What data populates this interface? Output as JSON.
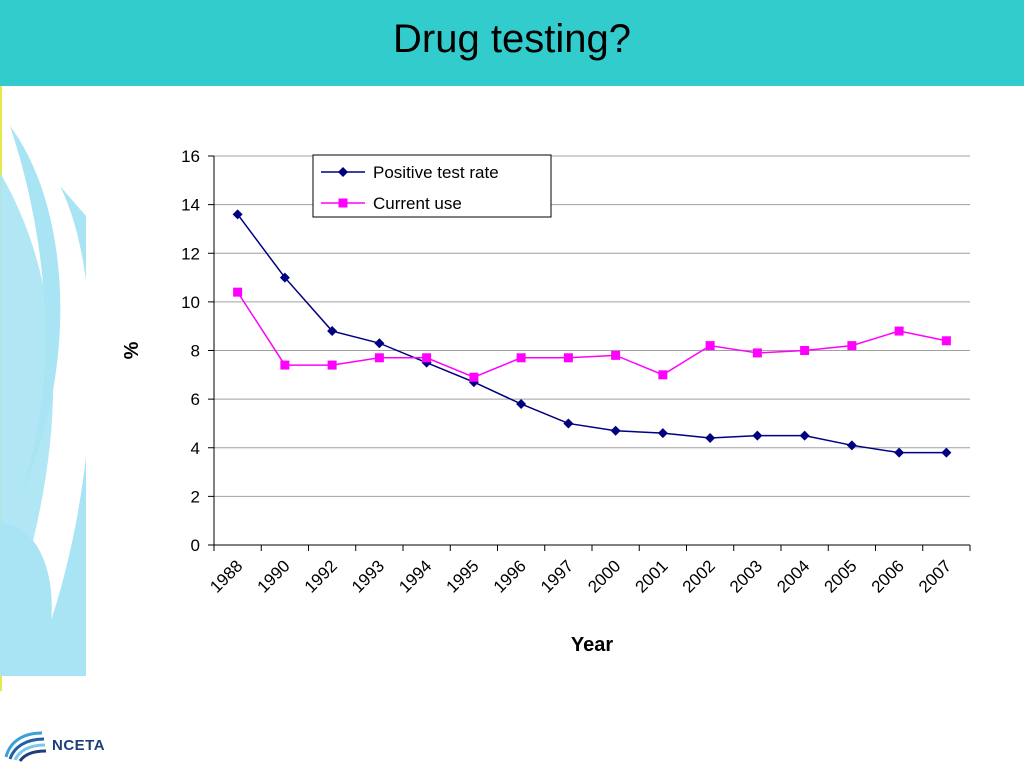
{
  "slide": {
    "title": "Drug testing?",
    "logo_text": "NCETA",
    "accent_color": "#33cccc",
    "decor_color": "#a8e4f4"
  },
  "chart_data": {
    "type": "line",
    "title": "",
    "xlabel": "Year",
    "ylabel": "%",
    "categories": [
      "1988",
      "1990",
      "1992",
      "1993",
      "1994",
      "1995",
      "1996",
      "1997",
      "2000",
      "2001",
      "2002",
      "2003",
      "2004",
      "2005",
      "2006",
      "2007"
    ],
    "series": [
      {
        "name": "Positive test rate",
        "color": "#000080",
        "marker": "diamond",
        "values": [
          13.6,
          11.0,
          8.8,
          8.3,
          7.5,
          6.7,
          5.8,
          5.0,
          4.7,
          4.6,
          4.4,
          4.5,
          4.5,
          4.1,
          3.8,
          3.8
        ]
      },
      {
        "name": "Current use",
        "color": "#ff00ff",
        "marker": "square",
        "values": [
          10.4,
          7.4,
          7.4,
          7.7,
          7.7,
          6.9,
          7.7,
          7.7,
          7.8,
          7.0,
          8.2,
          7.9,
          8.0,
          8.2,
          8.8,
          8.4
        ]
      }
    ],
    "ylim": [
      0,
      16
    ],
    "yticks": [
      0,
      2,
      4,
      6,
      8,
      10,
      12,
      14,
      16
    ],
    "grid": true,
    "legend_position": "top-left"
  }
}
